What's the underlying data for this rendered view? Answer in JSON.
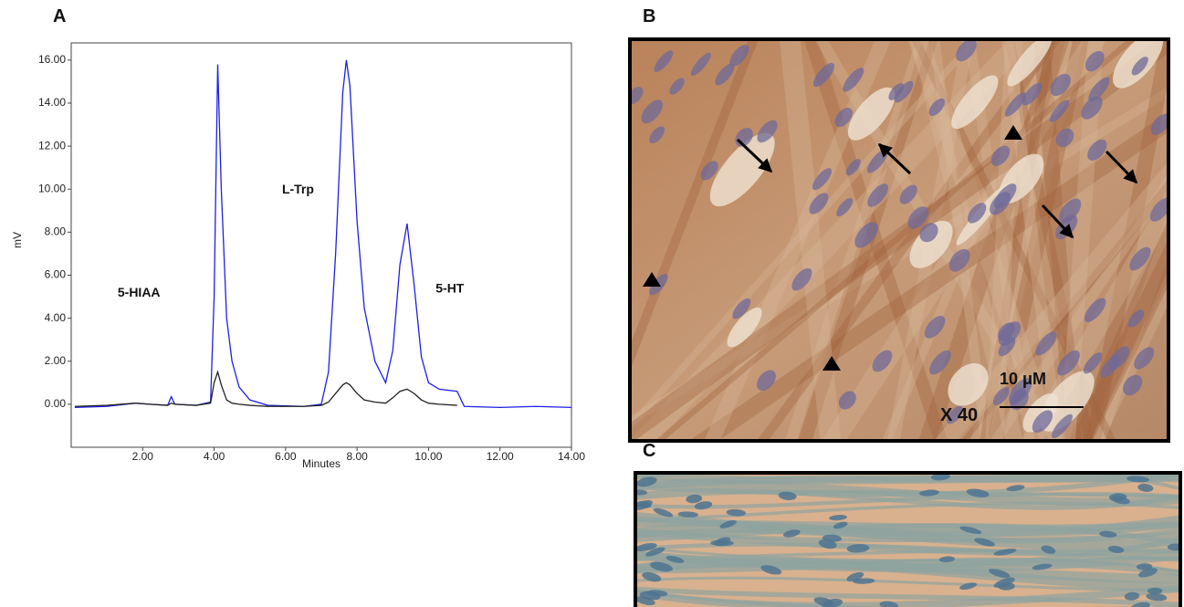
{
  "chart_data": {
    "type": "line",
    "xlabel": "Minutes",
    "ylabel": "mV",
    "x": [
      0.1,
      1.0,
      1.8,
      2.2,
      2.7,
      2.8,
      2.9,
      3.5,
      3.9,
      4.0,
      4.1,
      4.2,
      4.35,
      4.5,
      4.7,
      5.0,
      5.5,
      6.5,
      7.0,
      7.2,
      7.4,
      7.6,
      7.7,
      7.8,
      8.0,
      8.2,
      8.5,
      8.8,
      9.0,
      9.2,
      9.4,
      9.6,
      9.8,
      10.0,
      10.3,
      10.8,
      11.0,
      12.0,
      13.0,
      14.0
    ],
    "series": [
      {
        "color": "#1f1fe6",
        "values": [
          -0.15,
          -0.1,
          0.05,
          0.0,
          -0.05,
          0.35,
          0.0,
          -0.05,
          0.1,
          5.0,
          15.8,
          10.0,
          4.0,
          2.0,
          0.8,
          0.2,
          -0.05,
          -0.1,
          0.0,
          1.5,
          7.0,
          14.5,
          16.0,
          14.8,
          8.5,
          4.5,
          2.0,
          1.0,
          2.5,
          6.5,
          8.4,
          5.5,
          2.2,
          1.0,
          0.7,
          0.6,
          -0.1,
          -0.15,
          -0.1,
          -0.15
        ]
      },
      {
        "color": "#222222",
        "values": [
          -0.1,
          -0.05,
          0.05,
          0.0,
          -0.05,
          0.05,
          0.0,
          -0.05,
          0.05,
          1.0,
          1.5,
          0.9,
          0.2,
          0.05,
          0.0,
          -0.05,
          -0.1,
          -0.1,
          -0.05,
          0.1,
          0.5,
          0.9,
          1.0,
          0.9,
          0.5,
          0.2,
          0.1,
          0.05,
          0.3,
          0.6,
          0.7,
          0.5,
          0.2,
          0.05,
          0.0,
          -0.05,
          null,
          null,
          null,
          null
        ]
      }
    ],
    "annotations": [
      "5-HIAA",
      "L-Trp",
      "5-HT"
    ],
    "xlim": [
      0,
      14
    ],
    "xticks": [
      {
        "value": 2,
        "label": "2.00"
      },
      {
        "value": 4,
        "label": "4.00"
      },
      {
        "value": 6,
        "label": "6.00"
      },
      {
        "value": 8,
        "label": "8.00"
      },
      {
        "value": 10,
        "label": "10.00"
      },
      {
        "value": 12,
        "label": "12.00"
      },
      {
        "value": 14,
        "label": "14.00"
      }
    ],
    "ylim": [
      -2,
      16.8
    ],
    "yticks": [
      {
        "value": 0,
        "label": "0.00"
      },
      {
        "value": 2,
        "label": "2.00"
      },
      {
        "value": 4,
        "label": "4.00"
      },
      {
        "value": 6,
        "label": "6.00"
      },
      {
        "value": 8,
        "label": "8.00"
      },
      {
        "value": 10,
        "label": "10.00"
      },
      {
        "value": 12,
        "label": "12.00"
      },
      {
        "value": 14,
        "label": "14.00"
      },
      {
        "value": 16,
        "label": "16.00"
      }
    ]
  },
  "panels": {
    "a": "A",
    "b": "B",
    "c": "C",
    "scale": "10 μM",
    "magnification": "X 40"
  }
}
